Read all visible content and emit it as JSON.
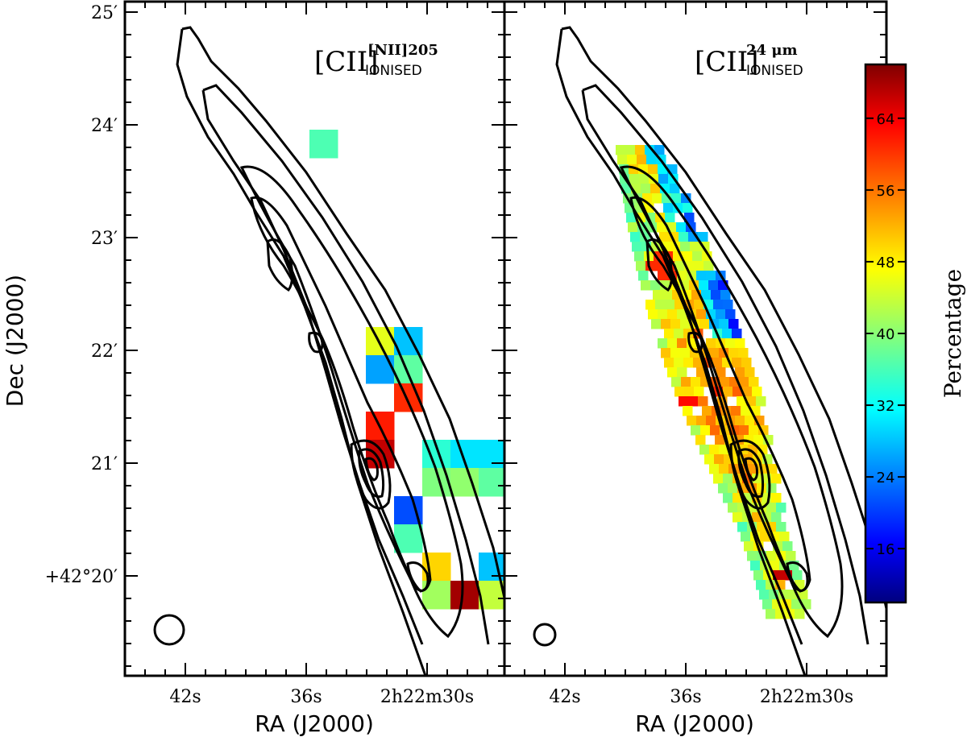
{
  "chart_data": [
    {
      "type": "heatmap",
      "panel": "left",
      "title": "[CII] IONISED",
      "title_base": "[CII]",
      "title_superscript": "[NII]205",
      "title_subscript": "IONISED",
      "xlabel": "RA (J2000)",
      "ylabel": "Dec (J2000)",
      "x_ticks": [
        "42s",
        "36s",
        "2h22m30s"
      ],
      "y_ticks": [
        "25′",
        "24′",
        "23′",
        "22′",
        "21′",
        "+42°20′"
      ],
      "colorbar_label": "Percentage",
      "value_range": [
        10,
        70
      ],
      "cells_note": "values estimated from colour (percentage); c = RA offset column, r = Dec offset row (data grid units)",
      "cells": [
        {
          "c": 3,
          "r": 0,
          "v": 37
        },
        {
          "c": 5,
          "r": 7,
          "v": 46
        },
        {
          "c": 5,
          "r": 8,
          "v": 27
        },
        {
          "c": 6,
          "r": 7,
          "v": 29
        },
        {
          "c": 6,
          "r": 8,
          "v": 38
        },
        {
          "c": 6,
          "r": 9,
          "v": 60
        },
        {
          "c": 5,
          "r": 10,
          "v": 61
        },
        {
          "c": 5,
          "r": 11,
          "v": 66
        },
        {
          "c": 7,
          "r": 11,
          "v": 35
        },
        {
          "c": 8,
          "r": 11,
          "v": 31
        },
        {
          "c": 9,
          "r": 11,
          "v": 31
        },
        {
          "c": 7,
          "r": 12,
          "v": 40
        },
        {
          "c": 8,
          "r": 12,
          "v": 41
        },
        {
          "c": 9,
          "r": 12,
          "v": 38
        },
        {
          "c": 6,
          "r": 13,
          "v": 22
        },
        {
          "c": 10,
          "r": 13,
          "v": 34
        },
        {
          "c": 6,
          "r": 14,
          "v": 37
        },
        {
          "c": 7,
          "r": 15,
          "v": 50
        },
        {
          "c": 9,
          "r": 15,
          "v": 29
        },
        {
          "c": 7,
          "r": 16,
          "v": 42
        },
        {
          "c": 8,
          "r": 16,
          "v": 68
        },
        {
          "c": 9,
          "r": 16,
          "v": 44
        },
        {
          "c": 10,
          "r": 16,
          "v": 24
        }
      ]
    },
    {
      "type": "heatmap",
      "panel": "right",
      "title": "[CII] IONISED",
      "title_base": "[CII]",
      "title_superscript": "24 μm",
      "title_subscript": "IONISED",
      "xlabel": "RA (J2000)",
      "ylabel": "",
      "x_ticks": [
        "42s",
        "36s",
        "2h22m30s"
      ],
      "colorbar_label": "Percentage",
      "colorbar_ticks": [
        16,
        24,
        32,
        40,
        48,
        56,
        64
      ],
      "value_range": [
        10,
        70
      ],
      "cells_note": "pixelised map of the ionised [CII] fraction along the galaxy ridge, values estimated from colour"
    }
  ]
}
